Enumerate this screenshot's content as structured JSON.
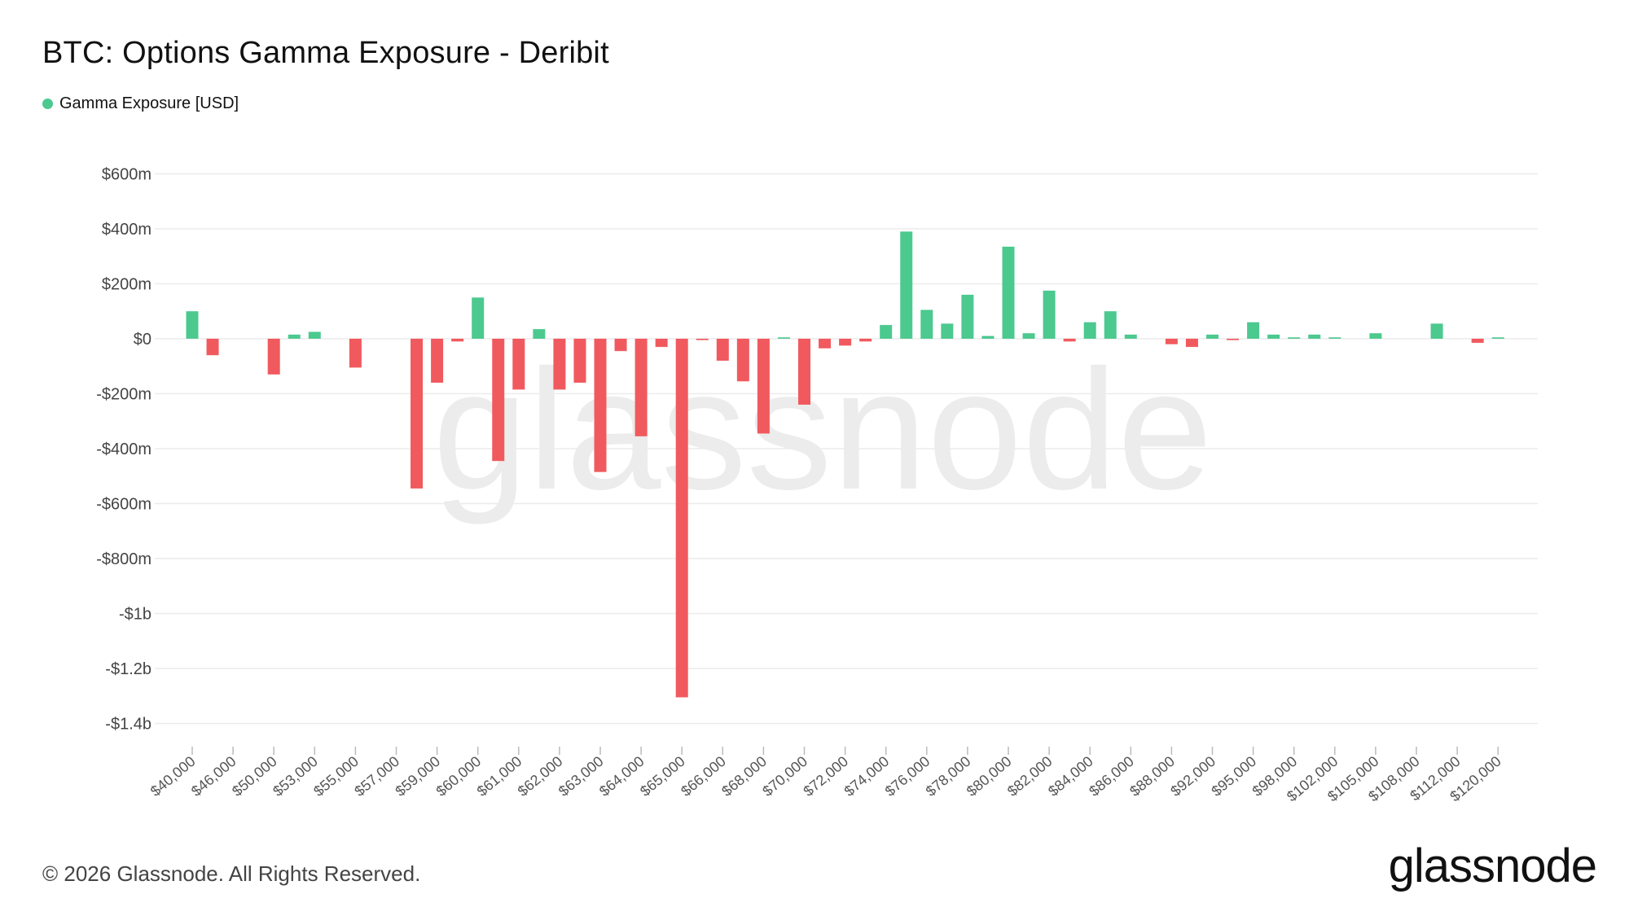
{
  "title": "BTC: Options Gamma Exposure - Deribit",
  "legend": {
    "label": "Gamma Exposure [USD]",
    "color": "#4cc98f"
  },
  "footer": {
    "copyright": "© 2026 Glassnode. All Rights Reserved.",
    "brand": "glassnode"
  },
  "watermark": "glassnode",
  "colors": {
    "positive": "#4cc98f",
    "negative": "#f05a5e",
    "grid": "#ececec",
    "tick": "#444444"
  },
  "chart_data": {
    "type": "bar",
    "yticks": [
      {
        "value": 600,
        "label": "$600m"
      },
      {
        "value": 400,
        "label": "$400m"
      },
      {
        "value": 200,
        "label": "$200m"
      },
      {
        "value": 0,
        "label": "$0"
      },
      {
        "value": -200,
        "label": "-$200m"
      },
      {
        "value": -400,
        "label": "-$400m"
      },
      {
        "value": -600,
        "label": "-$600m"
      },
      {
        "value": -800,
        "label": "-$800m"
      },
      {
        "value": -1000,
        "label": "-$1b"
      },
      {
        "value": -1200,
        "label": "-$1.2b"
      },
      {
        "value": -1400,
        "label": "-$1.4b"
      }
    ],
    "ylim": [
      -1480,
      600
    ],
    "grid": true,
    "xtick_labels": [
      "$40,000",
      "$46,000",
      "$50,000",
      "$53,000",
      "$55,000",
      "$57,000",
      "$59,000",
      "$60,000",
      "$61,000",
      "$62,000",
      "$63,000",
      "$64,000",
      "$65,000",
      "$66,000",
      "$68,000",
      "$70,000",
      "$72,000",
      "$74,000",
      "$76,000",
      "$78,000",
      "$80,000",
      "$82,000",
      "$84,000",
      "$86,000",
      "$88,000",
      "$92,000",
      "$95,000",
      "$98,000",
      "$102,000",
      "$105,000",
      "$108,000",
      "$112,000",
      "$120,000"
    ],
    "values": [
      100,
      -60,
      0,
      0,
      -130,
      15,
      25,
      0,
      -105,
      0,
      0,
      -545,
      -160,
      -10,
      150,
      -445,
      -185,
      35,
      -185,
      -160,
      -485,
      -45,
      -355,
      -30,
      -1305,
      -5,
      -80,
      -155,
      -345,
      5,
      -240,
      -35,
      -25,
      -10,
      50,
      390,
      105,
      55,
      160,
      10,
      335,
      20,
      175,
      -10,
      60,
      100,
      15,
      0,
      -20,
      -30,
      15,
      -5,
      60,
      15,
      5,
      15,
      5,
      0,
      20,
      0,
      0,
      55,
      0,
      -15,
      5
    ]
  }
}
